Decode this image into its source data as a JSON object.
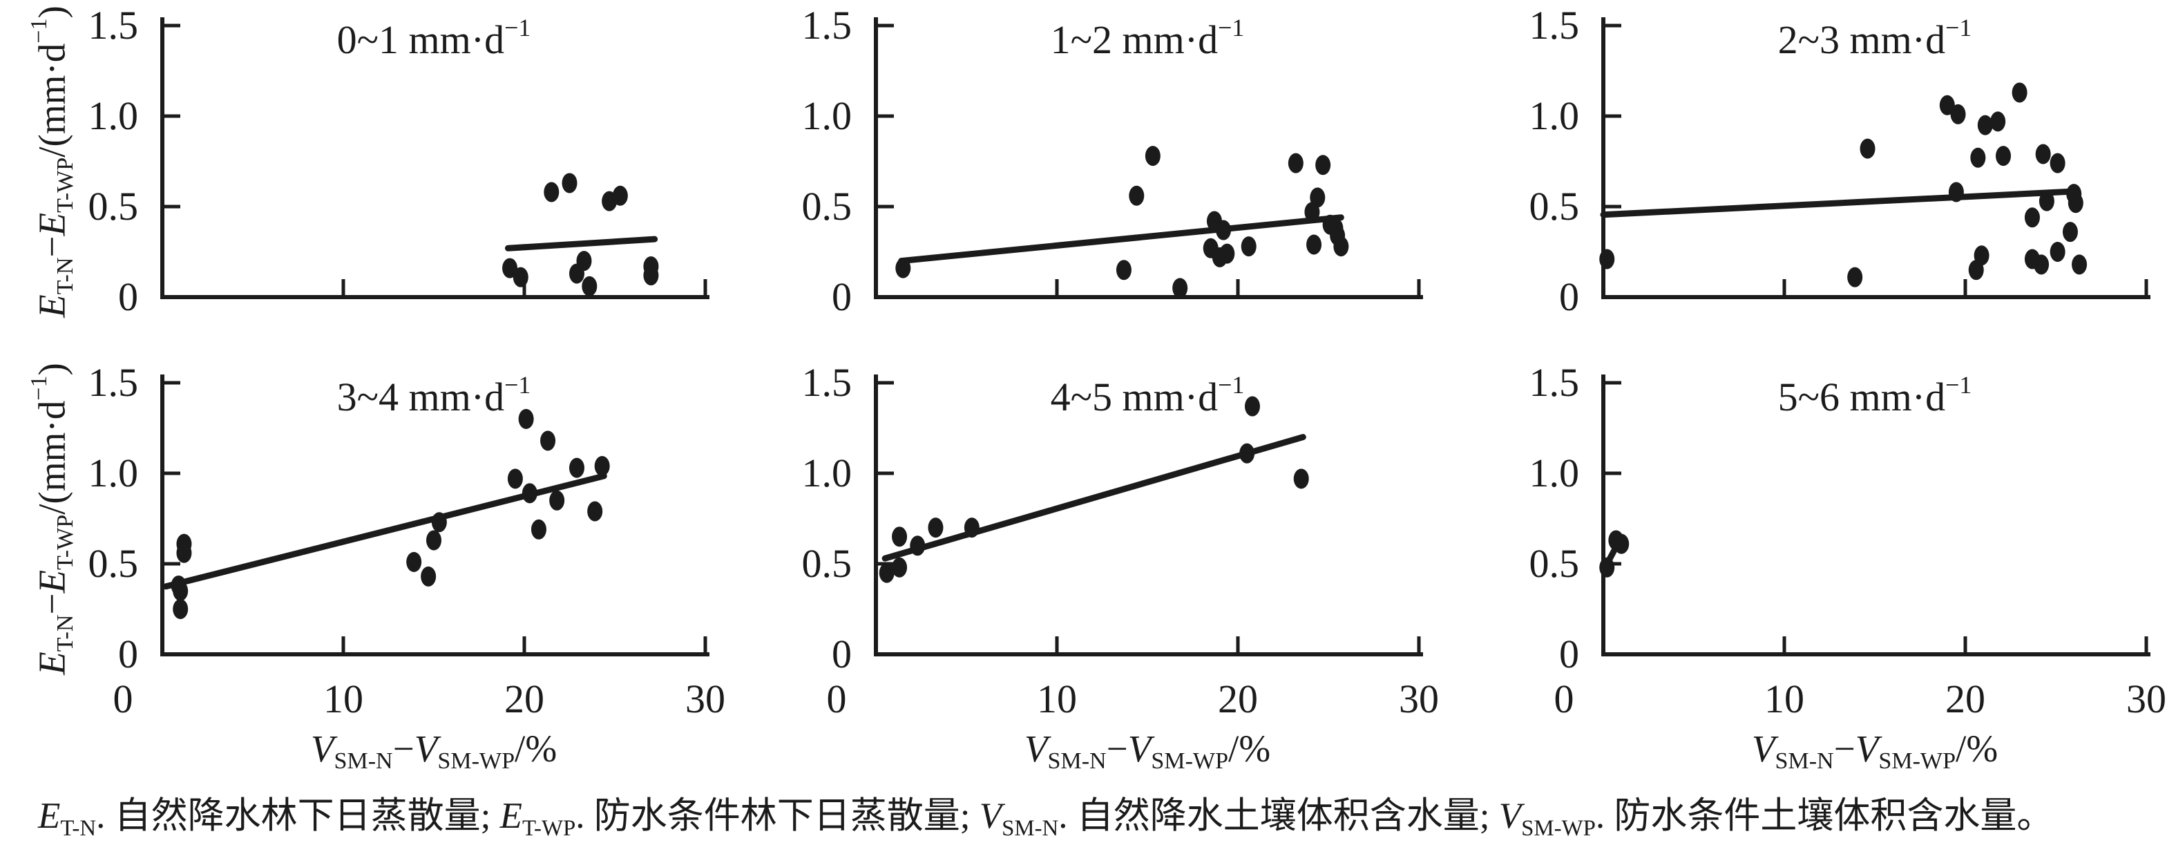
{
  "colors": {
    "ink": "#1b1b1b",
    "background": "#ffffff"
  },
  "axes": {
    "x": {
      "range": [
        0,
        30
      ],
      "ticks": [
        0,
        10,
        20,
        30
      ],
      "tick_labels": [
        "0",
        "10",
        "20",
        "30"
      ]
    },
    "y": {
      "range": [
        0,
        1.5
      ],
      "ticks": [
        0,
        0.5,
        1.0,
        1.5
      ],
      "tick_labels": [
        "0",
        "0.5",
        "1.0",
        "1.5"
      ]
    }
  },
  "y_axis_title": {
    "plain": "E(T-N)−E(T-WP)/(mm·d−1)",
    "segments": [
      {
        "t": "E",
        "style": "i"
      },
      {
        "t": "T-N",
        "style": "sub"
      },
      {
        "t": "−"
      },
      {
        "t": "E",
        "style": "i"
      },
      {
        "t": "T-WP",
        "style": "sub"
      },
      {
        "t": "/(mm·d"
      },
      {
        "t": "−1",
        "style": "sup"
      },
      {
        "t": ")"
      }
    ]
  },
  "x_axis_title": {
    "plain": "V(SM-N)−V(SM-WP)/%",
    "segments": [
      {
        "t": "V",
        "style": "i"
      },
      {
        "t": "SM-N",
        "style": "sub"
      },
      {
        "t": "−"
      },
      {
        "t": "V",
        "style": "i"
      },
      {
        "t": "SM-WP",
        "style": "sub"
      },
      {
        "t": "/%"
      }
    ]
  },
  "caption": {
    "plain": "E(T-N). 自然降水林下日蒸散量; E(T-WP). 防水条件林下日蒸散量; V(SM-N). 自然降水土壤体积含水量; V(SM-WP). 防水条件土壤体积含水量。",
    "segments": [
      {
        "t": "E",
        "style": "i"
      },
      {
        "t": "T-N",
        "style": "sub"
      },
      {
        "t": ". 自然降水林下日蒸散量; "
      },
      {
        "t": "E",
        "style": "i"
      },
      {
        "t": "T-WP",
        "style": "sub"
      },
      {
        "t": ". 防水条件林下日蒸散量; "
      },
      {
        "t": "V",
        "style": "i"
      },
      {
        "t": "SM-N",
        "style": "sub"
      },
      {
        "t": ". 自然降水土壤体积含水量; "
      },
      {
        "t": "V",
        "style": "i"
      },
      {
        "t": "SM-WP",
        "style": "sub"
      },
      {
        "t": ". 防水条件土壤体积含水量。"
      }
    ]
  },
  "chart_data": {
    "type": "scatter",
    "grid": false,
    "legend": "none",
    "xlabel": "V(SM-N)−V(SM-WP)/%",
    "ylabel": "E(T-N)−E(T-WP)/(mm·d−1)",
    "xlim": [
      0,
      30
    ],
    "ylim": [
      0,
      1.5
    ],
    "panels": [
      {
        "title_plain": "0~1 mm·d−1",
        "title_segments": [
          {
            "t": "0~1 mm·d"
          },
          {
            "t": "−1",
            "style": "sup"
          }
        ],
        "points": [
          [
            21.5,
            0.58
          ],
          [
            22.5,
            0.63
          ],
          [
            24.7,
            0.53
          ],
          [
            25.3,
            0.56
          ],
          [
            19.2,
            0.16
          ],
          [
            19.8,
            0.11
          ],
          [
            23.3,
            0.2
          ],
          [
            22.9,
            0.13
          ],
          [
            23.6,
            0.06
          ],
          [
            27.0,
            0.17
          ],
          [
            27.0,
            0.12
          ]
        ],
        "trend": [
          [
            19.1,
            0.27
          ],
          [
            27.2,
            0.32
          ]
        ]
      },
      {
        "title_plain": "1~2 mm·d−1",
        "title_segments": [
          {
            "t": "1~2 mm·d"
          },
          {
            "t": "−1",
            "style": "sup"
          }
        ],
        "points": [
          [
            1.5,
            0.16
          ],
          [
            15.3,
            0.78
          ],
          [
            14.4,
            0.56
          ],
          [
            13.7,
            0.15
          ],
          [
            16.8,
            0.05
          ],
          [
            18.7,
            0.42
          ],
          [
            19.2,
            0.37
          ],
          [
            18.5,
            0.27
          ],
          [
            19.0,
            0.22
          ],
          [
            19.4,
            0.24
          ],
          [
            20.6,
            0.28
          ],
          [
            23.2,
            0.74
          ],
          [
            24.7,
            0.73
          ],
          [
            24.4,
            0.55
          ],
          [
            24.1,
            0.47
          ],
          [
            25.1,
            0.4
          ],
          [
            25.4,
            0.38
          ],
          [
            25.5,
            0.34
          ],
          [
            24.2,
            0.29
          ],
          [
            25.7,
            0.28
          ]
        ],
        "trend": [
          [
            1.4,
            0.2
          ],
          [
            25.7,
            0.44
          ]
        ]
      },
      {
        "title_plain": "2~3 mm·d−1",
        "title_segments": [
          {
            "t": "2~3 mm·d"
          },
          {
            "t": "−1",
            "style": "sup"
          }
        ],
        "points": [
          [
            0.2,
            0.21
          ],
          [
            13.9,
            0.11
          ],
          [
            14.6,
            0.82
          ],
          [
            19.0,
            1.06
          ],
          [
            19.6,
            1.01
          ],
          [
            21.1,
            0.95
          ],
          [
            21.8,
            0.97
          ],
          [
            23.0,
            1.13
          ],
          [
            20.7,
            0.77
          ],
          [
            22.1,
            0.78
          ],
          [
            24.3,
            0.79
          ],
          [
            25.1,
            0.74
          ],
          [
            19.5,
            0.58
          ],
          [
            24.5,
            0.53
          ],
          [
            26.0,
            0.57
          ],
          [
            26.1,
            0.52
          ],
          [
            23.7,
            0.44
          ],
          [
            25.8,
            0.36
          ],
          [
            20.9,
            0.23
          ],
          [
            20.6,
            0.15
          ],
          [
            23.7,
            0.21
          ],
          [
            24.2,
            0.18
          ],
          [
            25.1,
            0.25
          ],
          [
            26.3,
            0.18
          ]
        ],
        "trend": [
          [
            0.0,
            0.455
          ],
          [
            26.2,
            0.585
          ]
        ]
      },
      {
        "title_plain": "3~4 mm·d−1",
        "title_segments": [
          {
            "t": "3~4 mm·d"
          },
          {
            "t": "−1",
            "style": "sup"
          }
        ],
        "points": [
          [
            1.2,
            0.61
          ],
          [
            1.2,
            0.56
          ],
          [
            0.9,
            0.38
          ],
          [
            1.0,
            0.35
          ],
          [
            1.0,
            0.25
          ],
          [
            15.3,
            0.73
          ],
          [
            15.0,
            0.63
          ],
          [
            13.9,
            0.51
          ],
          [
            14.7,
            0.43
          ],
          [
            20.1,
            1.3
          ],
          [
            21.3,
            1.18
          ],
          [
            19.5,
            0.97
          ],
          [
            20.3,
            0.89
          ],
          [
            21.8,
            0.85
          ],
          [
            22.9,
            1.03
          ],
          [
            24.3,
            1.04
          ],
          [
            23.9,
            0.79
          ],
          [
            20.8,
            0.69
          ]
        ],
        "trend": [
          [
            0.2,
            0.375
          ],
          [
            24.4,
            0.985
          ]
        ]
      },
      {
        "title_plain": "4~5 mm·d−1",
        "title_segments": [
          {
            "t": "4~5 mm·d"
          },
          {
            "t": "−1",
            "style": "sup"
          }
        ],
        "points": [
          [
            0.6,
            0.45
          ],
          [
            1.3,
            0.48
          ],
          [
            1.3,
            0.65
          ],
          [
            2.3,
            0.6
          ],
          [
            3.3,
            0.7
          ],
          [
            5.3,
            0.7
          ],
          [
            20.8,
            1.37
          ],
          [
            20.5,
            1.11
          ],
          [
            23.5,
            0.97
          ]
        ],
        "trend": [
          [
            0.5,
            0.53
          ],
          [
            23.6,
            1.2
          ]
        ]
      },
      {
        "title_plain": "5~6 mm·d−1",
        "title_segments": [
          {
            "t": "5~6 mm·d"
          },
          {
            "t": "−1",
            "style": "sup"
          }
        ],
        "points": [
          [
            0.2,
            0.48
          ],
          [
            0.7,
            0.63
          ],
          [
            1.0,
            0.61
          ]
        ],
        "trend": [
          [
            0.1,
            0.48
          ],
          [
            0.9,
            0.63
          ]
        ]
      }
    ]
  }
}
